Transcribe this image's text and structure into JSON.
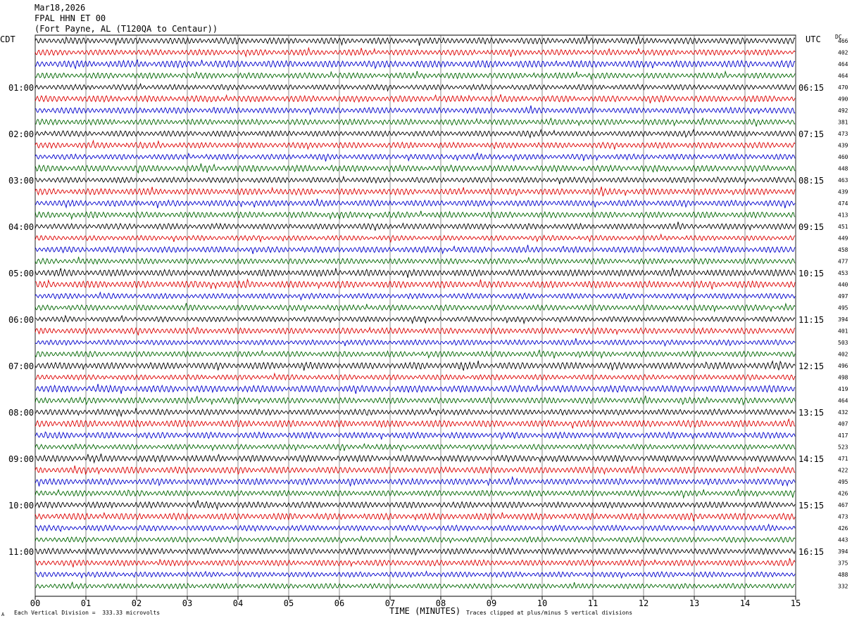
{
  "header": {
    "date": "Mar18,2026",
    "station": "FPAL HHN ET 00",
    "location": "(Fort Payne, AL (T120QA to Centaur))"
  },
  "left_timezone": "CDT",
  "right_timezone": "UTC",
  "dc_label": "DC",
  "footer": {
    "scale_note": "Each Vertical Division =  333.33 microvolts",
    "clip_note": "Traces clipped at plus/minus 5 vertical divisions",
    "corner_mark": "A"
  },
  "colors": {
    "trace_cycle": [
      "#000000",
      "#dd0000",
      "#0000cc",
      "#006600"
    ],
    "grid": "#000000",
    "background": "#ffffff"
  },
  "chart_data": {
    "type": "line",
    "subtype": "helicorder seismogram",
    "xlabel": "TIME (MINUTES)",
    "x_ticks": [
      "00",
      "01",
      "02",
      "03",
      "04",
      "05",
      "06",
      "07",
      "08",
      "09",
      "10",
      "11",
      "12",
      "13",
      "14",
      "15"
    ],
    "xlim": [
      0,
      15
    ],
    "rows": 48,
    "minutes_per_row": 15,
    "left_hour_labels": [
      "01:00",
      "02:00",
      "03:00",
      "04:00",
      "05:00",
      "06:00",
      "07:00",
      "08:00",
      "09:00",
      "10:00",
      "11:00"
    ],
    "right_hour_labels": [
      "06:15",
      "07:15",
      "08:15",
      "09:15",
      "10:15",
      "11:15",
      "12:15",
      "13:15",
      "14:15",
      "15:15",
      "16:15"
    ],
    "dc_offsets": [
      466,
      402,
      464,
      464,
      470,
      490,
      492,
      381,
      473,
      439,
      460,
      448,
      463,
      439,
      474,
      413,
      451,
      449,
      458,
      477,
      453,
      440,
      497,
      495,
      394,
      401,
      503,
      402,
      496,
      498,
      419,
      464,
      432,
      407,
      417,
      523,
      471,
      422,
      495,
      426,
      467,
      473,
      426,
      443,
      394,
      375,
      488,
      332
    ],
    "vertical_division_microvolts": 333.33,
    "clip_divisions": 5
  }
}
